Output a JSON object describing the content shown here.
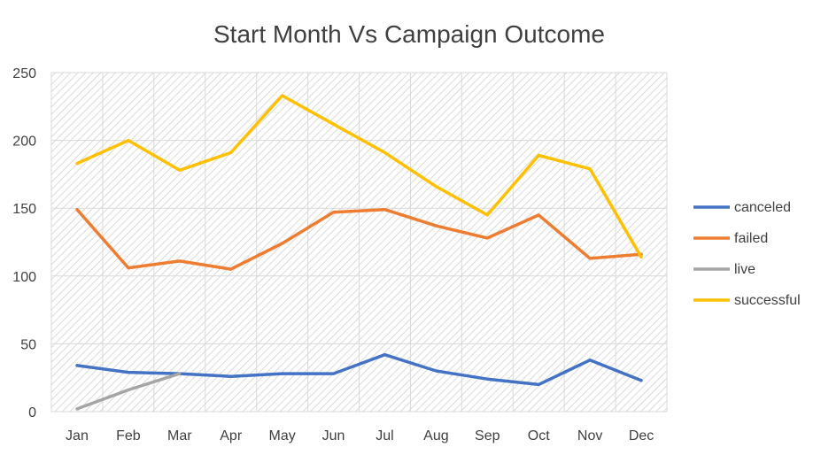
{
  "chart_data": {
    "type": "line",
    "title": "Start Month Vs Campaign Outcome",
    "xlabel": "",
    "ylabel": "",
    "categories": [
      "Jan",
      "Feb",
      "Mar",
      "Apr",
      "May",
      "Jun",
      "Jul",
      "Aug",
      "Sep",
      "Oct",
      "Nov",
      "Dec"
    ],
    "ylim": [
      0,
      250
    ],
    "yticks": [
      0,
      50,
      100,
      150,
      200,
      250
    ],
    "grid": true,
    "legend_position": "right",
    "series": [
      {
        "name": "canceled",
        "color": "#4472C4",
        "values": [
          34,
          29,
          28,
          26,
          28,
          28,
          42,
          30,
          24,
          20,
          38,
          23
        ]
      },
      {
        "name": "failed",
        "color": "#ED7D31",
        "values": [
          149,
          106,
          111,
          105,
          124,
          147,
          149,
          137,
          128,
          145,
          113,
          116
        ]
      },
      {
        "name": "live",
        "color": "#A5A5A5",
        "values": [
          2,
          16,
          28,
          null,
          null,
          null,
          null,
          null,
          null,
          null,
          null,
          null
        ]
      },
      {
        "name": "successful",
        "color": "#FFC000",
        "values": [
          183,
          200,
          178,
          191,
          233,
          212,
          191,
          166,
          145,
          189,
          179,
          114
        ]
      }
    ]
  }
}
